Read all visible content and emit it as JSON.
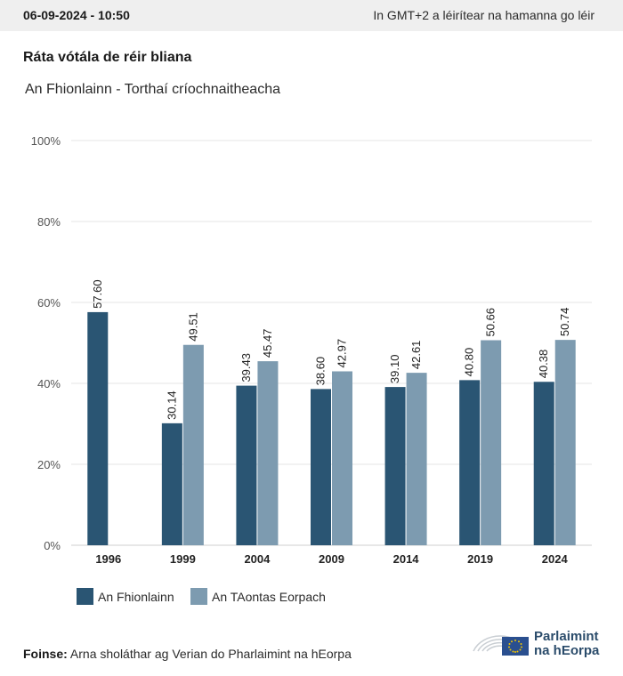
{
  "header": {
    "timestamp": "06-09-2024 - 10:50",
    "timezone_note": "In GMT+2 a léirítear na hamanna go léir"
  },
  "chart_data": {
    "type": "bar",
    "title": "Ráta vótála de réir bliana",
    "subtitle": "An Fhionlainn - Torthaí críochnaitheacha",
    "categories": [
      "1996",
      "1999",
      "2004",
      "2009",
      "2014",
      "2019",
      "2024"
    ],
    "series": [
      {
        "name": "An Fhionlainn",
        "color": "#2a5573",
        "values": [
          57.6,
          30.14,
          39.43,
          38.6,
          39.1,
          40.8,
          40.38
        ]
      },
      {
        "name": "An TAontas Eorpach",
        "color": "#7d9bb0",
        "values": [
          null,
          49.51,
          45.47,
          42.97,
          42.61,
          50.66,
          50.74
        ]
      }
    ],
    "value_labels": [
      [
        "57.60",
        "30.14",
        "39.43",
        "38.60",
        "39.10",
        "40.80",
        "40.38"
      ],
      [
        null,
        "49.51",
        "45.47",
        "42.97",
        "42.61",
        "50.66",
        "50.74"
      ]
    ],
    "yticks": [
      0,
      20,
      40,
      60,
      80,
      100
    ],
    "ytick_labels": [
      "0%",
      "20%",
      "40%",
      "60%",
      "80%",
      "100%"
    ],
    "ylim": [
      0,
      100
    ],
    "grid": true,
    "legend": "bottom-left"
  },
  "source": {
    "label": "Foinse:",
    "text": "Arna sholáthar ag Verian do Pharlaimint na hEorpa"
  },
  "logo": {
    "line1": "Parlaimint",
    "line2": "na hEorpa"
  }
}
